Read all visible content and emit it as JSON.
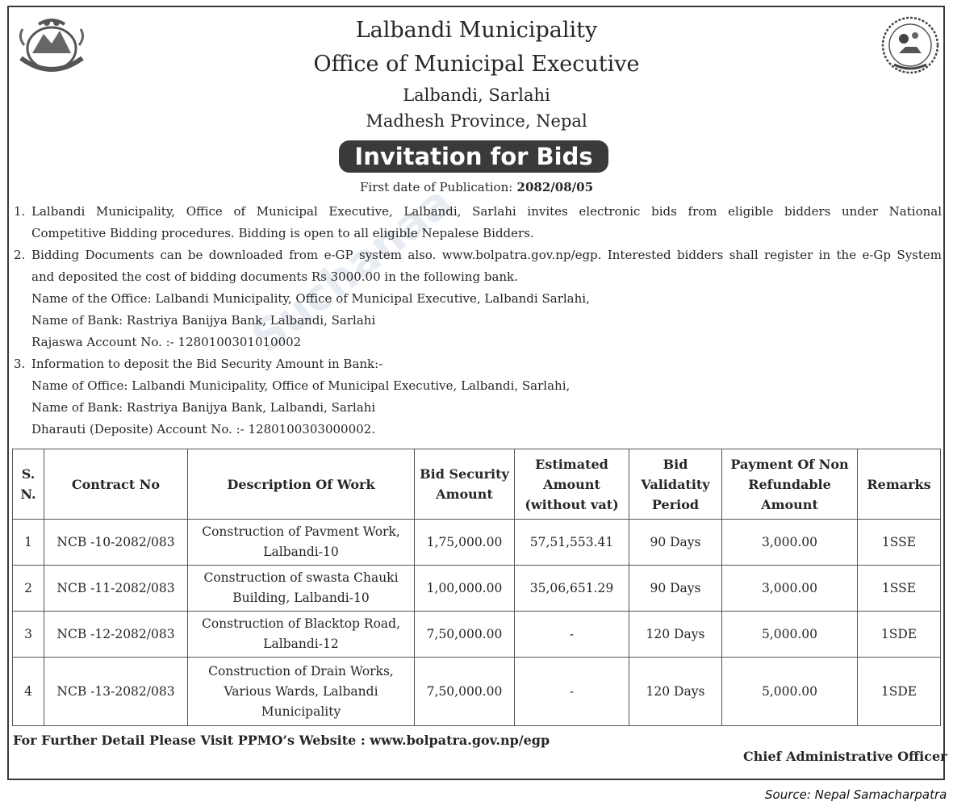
{
  "header": {
    "org": "Lalbandi Municipality",
    "office": "Office of Municipal Executive",
    "location": "Lalbandi, Sarlahi",
    "province": "Madhesh Province, Nepal",
    "title": "Invitation for Bids",
    "pub_label": "First date of Publication:",
    "pub_date": "2082/08/05"
  },
  "para1": {
    "num": "1.",
    "line1": "Lalbandi Municipality, Office of Municipal Executive, Lalbandi, Sarlahi invites electronic bids from eligible bidders under National",
    "line2": "Competitive Bidding procedures. Bidding is open to all eligible Nepalese Bidders."
  },
  "para2": {
    "num": "2.",
    "line1": "Bidding Documents can be downloaded from e-GP system also. www.bolpatra.gov.np/egp. Interested bidders shall register in the e-Gp System",
    "line2": "and deposited the cost of bidding documents Rs 3000.00 in the following bank.",
    "line3": "Name of the Office: Lalbandi Municipality, Office of Municipal Executive, Lalbandi Sarlahi,",
    "line4": "Name of Bank: Rastriya Banijya Bank, Lalbandi, Sarlahi",
    "line5": "Rajaswa  Account No. :- 1280100301010002"
  },
  "para3": {
    "num": "3.",
    "line1": "Information to deposit the Bid Security Amount in Bank:-",
    "line2": "Name of Office: Lalbandi Municipality, Office of Municipal Executive, Lalbandi, Sarlahi,",
    "line3": "Name of Bank: Rastriya Banijya Bank, Lalbandi, Sarlahi",
    "line4": "Dharauti (Deposite) Account No. :- 1280100303000002."
  },
  "table": {
    "headers": [
      "S. N.",
      "Contract No",
      "Description Of Work",
      "Bid Security Amount",
      "Estimated Amount (without vat)",
      "Bid Validatity Period",
      "Payment Of Non Refundable Amount",
      "Remarks"
    ],
    "rows": [
      [
        "1",
        "NCB -10-2082/083",
        "Construction of  Pavment Work, Lalbandi-10",
        "1,75,000.00",
        "57,51,553.41",
        "90 Days",
        "3,000.00",
        "1SSE"
      ],
      [
        "2",
        "NCB -11-2082/083",
        "Construction of  swasta Chauki Building, Lalbandi-10",
        "1,00,000.00",
        "35,06,651.29",
        "90 Days",
        "3,000.00",
        "1SSE"
      ],
      [
        "3",
        "NCB -12-2082/083",
        "Construction of  Blacktop Road, Lalbandi-12",
        "7,50,000.00",
        "-",
        "120 Days",
        "5,000.00",
        "1SDE"
      ],
      [
        "4",
        "NCB -13-2082/083",
        "Construction of  Drain Works, Various Wards, Lalbandi Municipality",
        "7,50,000.00",
        "-",
        "120 Days",
        "5,000.00",
        "1SDE"
      ]
    ]
  },
  "footer": {
    "website": "For Further Detail Please Visit PPMO’s Website : www.bolpatra.gov.np/egp",
    "signatory": "Chief Administrative Officer"
  },
  "source": "Source: Nepal Samacharpatra",
  "watermark": "Suchanaa",
  "icons": {
    "left": "nepal-government-emblem-icon",
    "right": "municipality-seal-icon"
  }
}
